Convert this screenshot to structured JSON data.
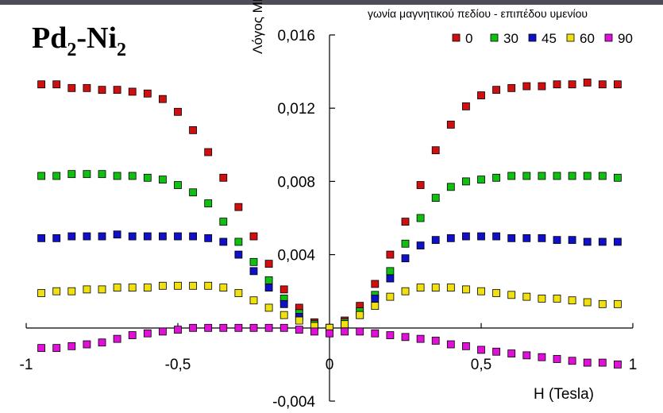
{
  "chart_data": {
    "type": "scatter",
    "title": {
      "base1": "Pd",
      "sub1": "2",
      "mid": "-Ni",
      "sub2": "2"
    },
    "legend_title": "γωνία μαγνητικού πεδίου - επιπέδου υμενίου",
    "legend_position": "top-right",
    "xlabel": "H (Tesla)",
    "ylabel": "Λόγος MR",
    "xlim": [
      -1,
      1
    ],
    "ylim": [
      -0.004,
      0.016
    ],
    "x_ticks": [
      "-1",
      "-0,5",
      "0",
      "0,5",
      "1"
    ],
    "y_ticks": [
      "-0,004",
      "0,004",
      "0,008",
      "0,012",
      "0,016"
    ],
    "grid": false,
    "series": [
      {
        "name": "0",
        "color": "#d01010",
        "points": [
          [
            -0.95,
            0.0133
          ],
          [
            -0.9,
            0.0133
          ],
          [
            -0.85,
            0.0131
          ],
          [
            -0.8,
            0.0131
          ],
          [
            -0.75,
            0.013
          ],
          [
            -0.7,
            0.013
          ],
          [
            -0.65,
            0.0129
          ],
          [
            -0.6,
            0.0128
          ],
          [
            -0.55,
            0.0125
          ],
          [
            -0.5,
            0.0118
          ],
          [
            -0.45,
            0.0108
          ],
          [
            -0.4,
            0.0096
          ],
          [
            -0.35,
            0.0082
          ],
          [
            -0.3,
            0.0066
          ],
          [
            -0.25,
            0.005
          ],
          [
            -0.2,
            0.0035
          ],
          [
            -0.15,
            0.0021
          ],
          [
            -0.1,
            0.0011
          ],
          [
            -0.05,
            0.0003
          ],
          [
            0,
            0
          ],
          [
            0.05,
            0.0004
          ],
          [
            0.1,
            0.0012
          ],
          [
            0.15,
            0.0024
          ],
          [
            0.2,
            0.004
          ],
          [
            0.25,
            0.0058
          ],
          [
            0.3,
            0.0078
          ],
          [
            0.35,
            0.0097
          ],
          [
            0.4,
            0.0111
          ],
          [
            0.45,
            0.0121
          ],
          [
            0.5,
            0.0127
          ],
          [
            0.55,
            0.013
          ],
          [
            0.6,
            0.0131
          ],
          [
            0.65,
            0.0132
          ],
          [
            0.7,
            0.0132
          ],
          [
            0.75,
            0.0133
          ],
          [
            0.8,
            0.0133
          ],
          [
            0.85,
            0.0134
          ],
          [
            0.9,
            0.0133
          ],
          [
            0.95,
            0.0133
          ]
        ]
      },
      {
        "name": "30",
        "color": "#10c010",
        "points": [
          [
            -0.95,
            0.0083
          ],
          [
            -0.9,
            0.0083
          ],
          [
            -0.85,
            0.0084
          ],
          [
            -0.8,
            0.0084
          ],
          [
            -0.75,
            0.0084
          ],
          [
            -0.7,
            0.0083
          ],
          [
            -0.65,
            0.0083
          ],
          [
            -0.6,
            0.0082
          ],
          [
            -0.55,
            0.0081
          ],
          [
            -0.5,
            0.0078
          ],
          [
            -0.45,
            0.0074
          ],
          [
            -0.4,
            0.0068
          ],
          [
            -0.35,
            0.0058
          ],
          [
            -0.3,
            0.0047
          ],
          [
            -0.25,
            0.0036
          ],
          [
            -0.2,
            0.0026
          ],
          [
            -0.15,
            0.0016
          ],
          [
            -0.1,
            0.0008
          ],
          [
            -0.05,
            0.0002
          ],
          [
            0,
            0
          ],
          [
            0.05,
            0.0003
          ],
          [
            0.1,
            0.0009
          ],
          [
            0.15,
            0.0018
          ],
          [
            0.2,
            0.0031
          ],
          [
            0.25,
            0.0046
          ],
          [
            0.3,
            0.006
          ],
          [
            0.35,
            0.0071
          ],
          [
            0.4,
            0.0077
          ],
          [
            0.45,
            0.008
          ],
          [
            0.5,
            0.0081
          ],
          [
            0.55,
            0.0082
          ],
          [
            0.6,
            0.0083
          ],
          [
            0.65,
            0.0083
          ],
          [
            0.7,
            0.0083
          ],
          [
            0.75,
            0.0083
          ],
          [
            0.8,
            0.0083
          ],
          [
            0.85,
            0.0083
          ],
          [
            0.9,
            0.0083
          ],
          [
            0.95,
            0.0082
          ]
        ]
      },
      {
        "name": "45",
        "color": "#1010c8",
        "points": [
          [
            -0.95,
            0.0049
          ],
          [
            -0.9,
            0.0049
          ],
          [
            -0.85,
            0.005
          ],
          [
            -0.8,
            0.005
          ],
          [
            -0.75,
            0.005
          ],
          [
            -0.7,
            0.0051
          ],
          [
            -0.65,
            0.005
          ],
          [
            -0.6,
            0.005
          ],
          [
            -0.55,
            0.005
          ],
          [
            -0.5,
            0.005
          ],
          [
            -0.45,
            0.005
          ],
          [
            -0.4,
            0.0049
          ],
          [
            -0.35,
            0.0047
          ],
          [
            -0.3,
            0.004
          ],
          [
            -0.25,
            0.0031
          ],
          [
            -0.2,
            0.0022
          ],
          [
            -0.15,
            0.0013
          ],
          [
            -0.1,
            0.0006
          ],
          [
            -0.05,
            0.0001
          ],
          [
            0,
            0
          ],
          [
            0.05,
            0.0002
          ],
          [
            0.1,
            0.0007
          ],
          [
            0.15,
            0.0016
          ],
          [
            0.2,
            0.0027
          ],
          [
            0.25,
            0.0038
          ],
          [
            0.3,
            0.0045
          ],
          [
            0.35,
            0.0048
          ],
          [
            0.4,
            0.0049
          ],
          [
            0.45,
            0.005
          ],
          [
            0.5,
            0.005
          ],
          [
            0.55,
            0.005
          ],
          [
            0.6,
            0.0049
          ],
          [
            0.65,
            0.0049
          ],
          [
            0.7,
            0.0049
          ],
          [
            0.75,
            0.0048
          ],
          [
            0.8,
            0.0048
          ],
          [
            0.85,
            0.0047
          ],
          [
            0.9,
            0.0047
          ],
          [
            0.95,
            0.0047
          ]
        ]
      },
      {
        "name": "60",
        "color": "#f0e010",
        "points": [
          [
            -0.95,
            0.0019
          ],
          [
            -0.9,
            0.002
          ],
          [
            -0.85,
            0.002
          ],
          [
            -0.8,
            0.0021
          ],
          [
            -0.75,
            0.0021
          ],
          [
            -0.7,
            0.0022
          ],
          [
            -0.65,
            0.0022
          ],
          [
            -0.6,
            0.0022
          ],
          [
            -0.55,
            0.0023
          ],
          [
            -0.5,
            0.0023
          ],
          [
            -0.45,
            0.0023
          ],
          [
            -0.4,
            0.0023
          ],
          [
            -0.35,
            0.0022
          ],
          [
            -0.3,
            0.0019
          ],
          [
            -0.25,
            0.0015
          ],
          [
            -0.2,
            0.0011
          ],
          [
            -0.15,
            0.0007
          ],
          [
            -0.1,
            0.0004
          ],
          [
            -0.05,
            0.0001
          ],
          [
            0,
            0
          ],
          [
            0.05,
            0.0002
          ],
          [
            0.1,
            0.0007
          ],
          [
            0.15,
            0.0012
          ],
          [
            0.2,
            0.0017
          ],
          [
            0.25,
            0.002
          ],
          [
            0.3,
            0.0022
          ],
          [
            0.35,
            0.0022
          ],
          [
            0.4,
            0.0022
          ],
          [
            0.45,
            0.0021
          ],
          [
            0.5,
            0.002
          ],
          [
            0.55,
            0.0019
          ],
          [
            0.6,
            0.0018
          ],
          [
            0.65,
            0.0017
          ],
          [
            0.7,
            0.0016
          ],
          [
            0.75,
            0.0016
          ],
          [
            0.8,
            0.0015
          ],
          [
            0.85,
            0.0014
          ],
          [
            0.9,
            0.0013
          ],
          [
            0.95,
            0.0013
          ]
        ]
      },
      {
        "name": "90",
        "color": "#e010d8",
        "points": [
          [
            -0.95,
            -0.0011
          ],
          [
            -0.9,
            -0.0011
          ],
          [
            -0.85,
            -0.001
          ],
          [
            -0.8,
            -0.0009
          ],
          [
            -0.75,
            -0.0008
          ],
          [
            -0.7,
            -0.0006
          ],
          [
            -0.65,
            -0.0004
          ],
          [
            -0.6,
            -0.0003
          ],
          [
            -0.55,
            -0.0002
          ],
          [
            -0.5,
            -0.0001
          ],
          [
            -0.45,
            0
          ],
          [
            -0.4,
            0
          ],
          [
            -0.35,
            0
          ],
          [
            -0.3,
            0
          ],
          [
            -0.25,
            0
          ],
          [
            -0.2,
            0
          ],
          [
            -0.15,
            0
          ],
          [
            -0.1,
            -0.0001
          ],
          [
            -0.05,
            -0.0002
          ],
          [
            0,
            -0.0003
          ],
          [
            0.05,
            -0.0002
          ],
          [
            0.1,
            -0.0002
          ],
          [
            0.15,
            -0.0003
          ],
          [
            0.2,
            -0.0004
          ],
          [
            0.25,
            -0.0005
          ],
          [
            0.3,
            -0.0006
          ],
          [
            0.35,
            -0.0007
          ],
          [
            0.4,
            -0.0009
          ],
          [
            0.45,
            -0.001
          ],
          [
            0.5,
            -0.0012
          ],
          [
            0.55,
            -0.0013
          ],
          [
            0.6,
            -0.0014
          ],
          [
            0.65,
            -0.0015
          ],
          [
            0.7,
            -0.0016
          ],
          [
            0.75,
            -0.0017
          ],
          [
            0.8,
            -0.0018
          ],
          [
            0.85,
            -0.0019
          ],
          [
            0.9,
            -0.0019
          ],
          [
            0.95,
            -0.002
          ]
        ]
      }
    ]
  }
}
